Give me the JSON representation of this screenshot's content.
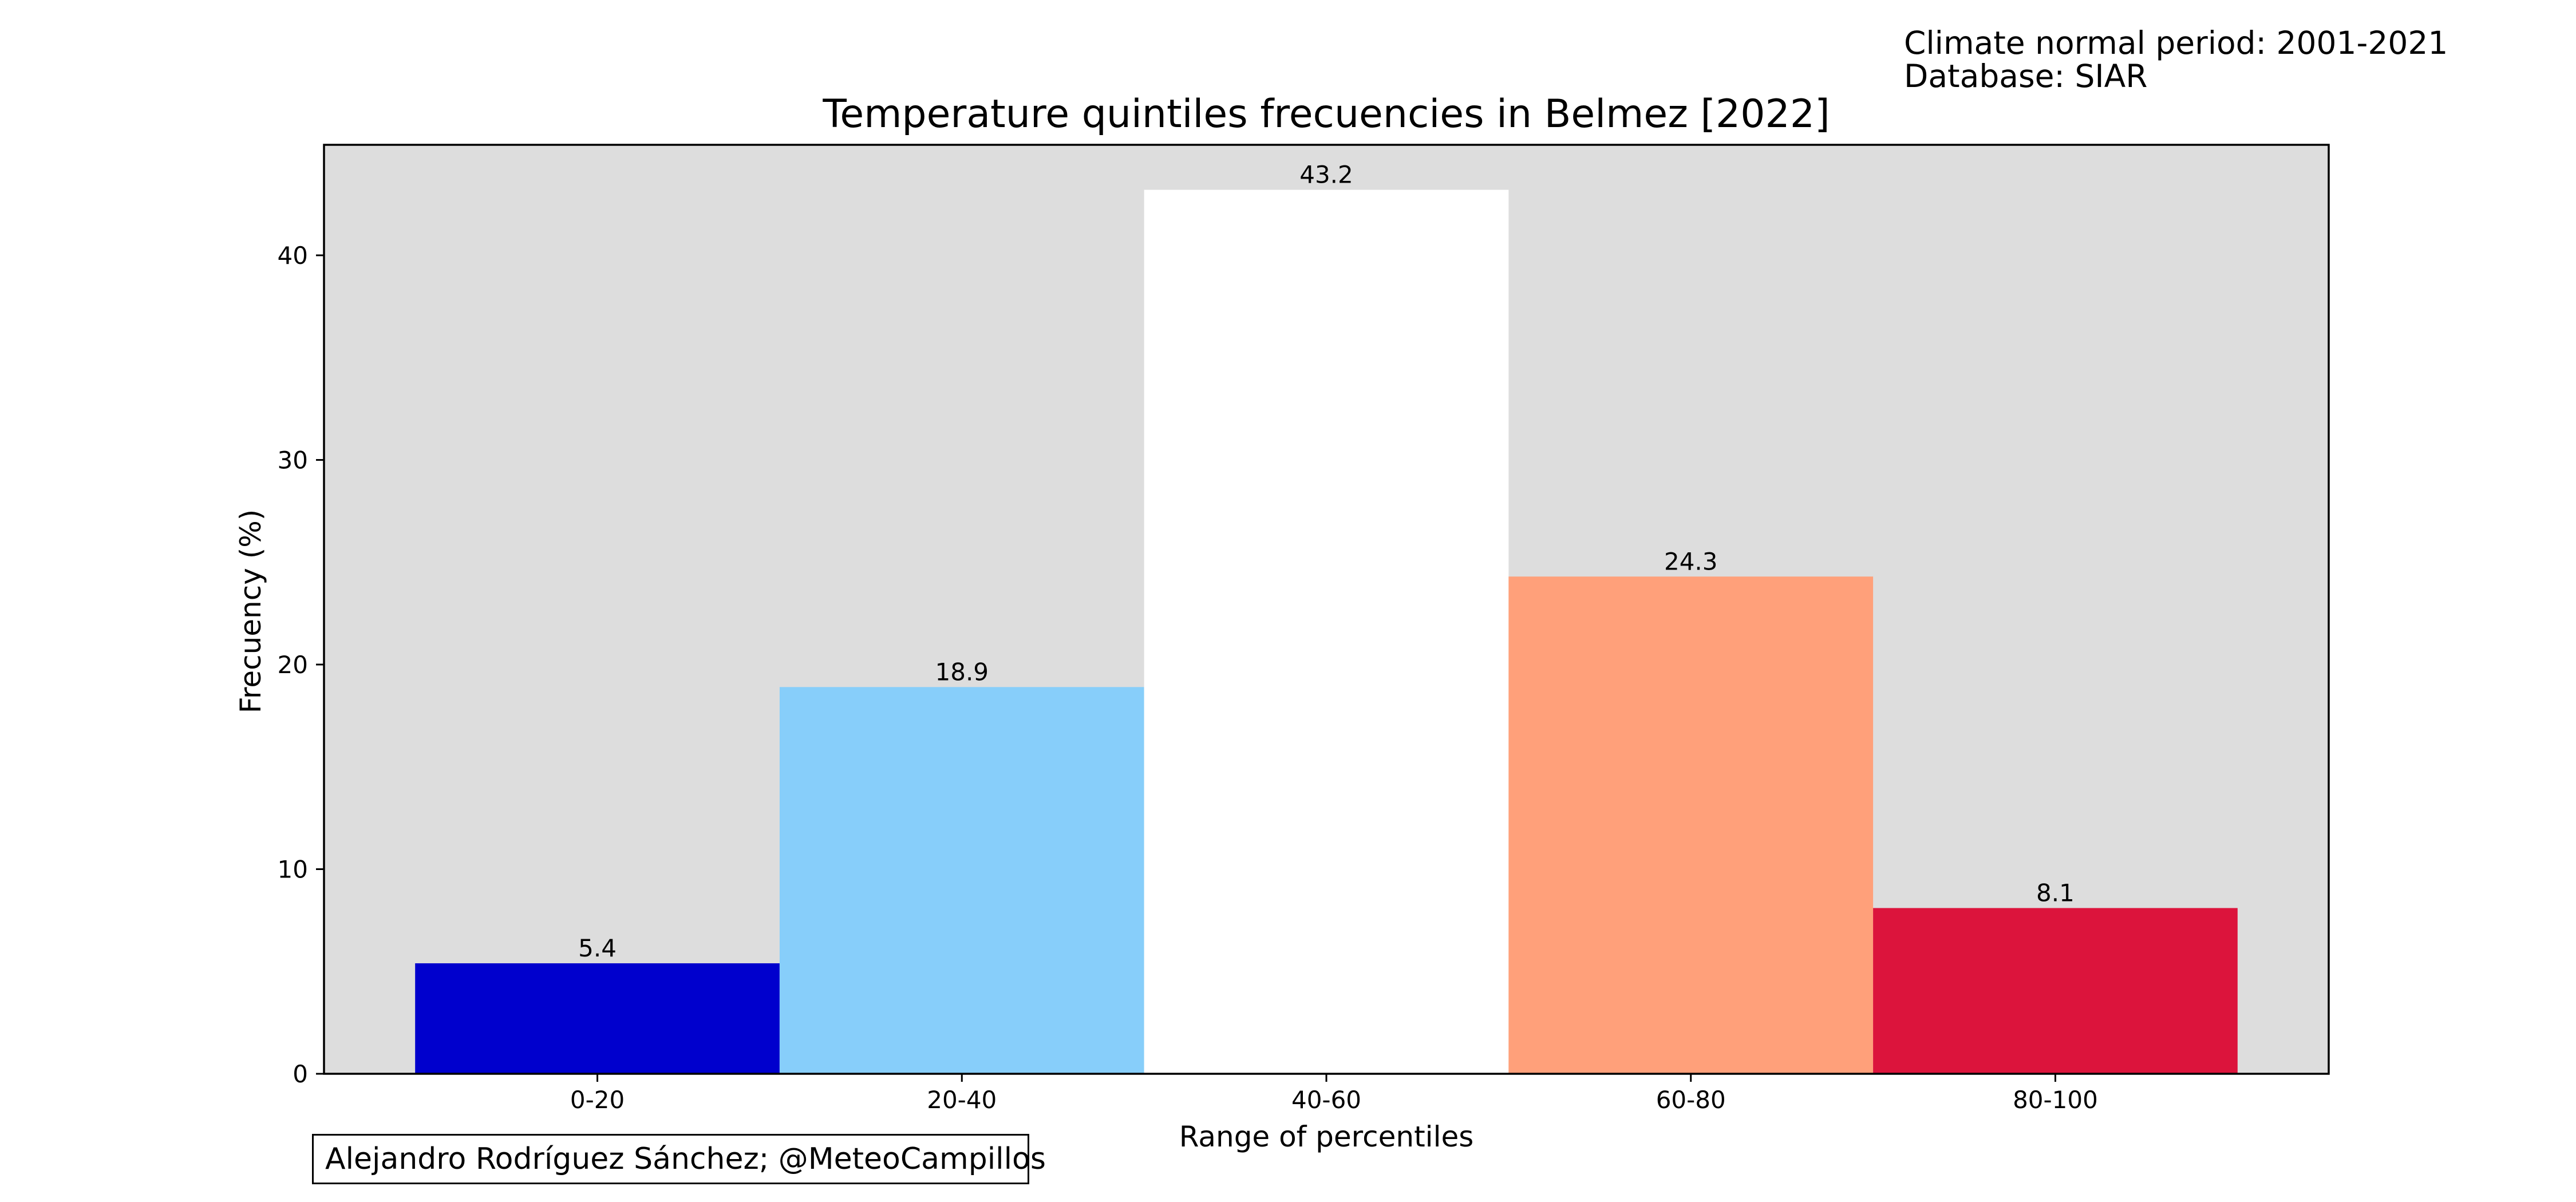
{
  "header": {
    "climate_period": "Climate normal period: 2001-2021",
    "database": "Database: SIAR"
  },
  "footer": {
    "credit": "Alejandro Rodríguez Sánchez; @MeteoCampillos"
  },
  "chart_data": {
    "type": "bar",
    "title": "Temperature quintiles frecuencies in Belmez [2022]",
    "xlabel": "Range of percentiles",
    "ylabel": "Frecuency (%)",
    "categories": [
      "0-20",
      "20-40",
      "40-60",
      "60-80",
      "80-100"
    ],
    "values": [
      5.4,
      18.9,
      43.2,
      24.3,
      8.1
    ],
    "value_labels": [
      "5.4",
      "18.9",
      "43.2",
      "24.3",
      "8.1"
    ],
    "colors": [
      "#0000cd",
      "#87cefa",
      "#ffffff",
      "#ffa07a",
      "#dc143c"
    ],
    "background_color": "#dddddd",
    "ylim": [
      0,
      45.4
    ],
    "xlim": [
      -0.75,
      4.75
    ],
    "yticks": [
      0,
      10,
      20,
      30,
      40
    ],
    "grid": false,
    "legend": "none"
  }
}
